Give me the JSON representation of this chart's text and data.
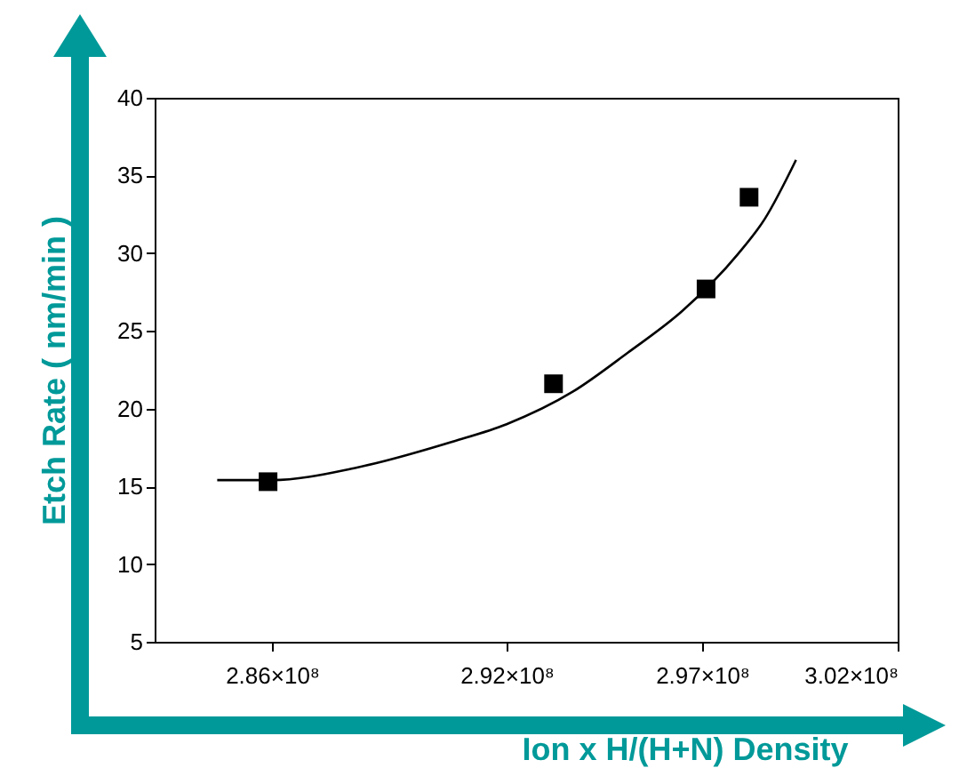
{
  "chart_data": {
    "type": "scatter",
    "xlabel": "Ion x H/(H+N) Density",
    "ylabel": "Etch Rate  ( nm/min )",
    "xlim": [
      283000000,
      302000000
    ],
    "ylim": [
      5,
      40
    ],
    "xticks": [
      {
        "value": 286000000,
        "label": "2.86×10⁸"
      },
      {
        "value": 292000000,
        "label": "2.92×10⁸"
      },
      {
        "value": 297000000,
        "label": "2.97×10⁸"
      },
      {
        "value": 302000000,
        "label": "3.02×10⁸"
      }
    ],
    "yticks": [
      5,
      10,
      15,
      20,
      25,
      30,
      35,
      40
    ],
    "grid": false,
    "series": [
      {
        "marker": "square",
        "color": "#000000",
        "x": [
          285900000,
          293200000,
          297100000,
          298200000
        ],
        "values": [
          15.3,
          21.6,
          27.7,
          33.6
        ]
      },
      {
        "type": "line",
        "marker": "none",
        "line_style": "solid",
        "color": "#000000",
        "x": [
          284600000,
          286000000,
          288150000,
          290650000,
          292000000,
          293700000,
          295100000,
          296500000,
          297900000,
          298600000,
          299400000
        ],
        "values": [
          15.4,
          15.4,
          16.2,
          17.9,
          19.0,
          21.1,
          23.6,
          26.3,
          29.9,
          32.2,
          36.0
        ]
      }
    ]
  }
}
